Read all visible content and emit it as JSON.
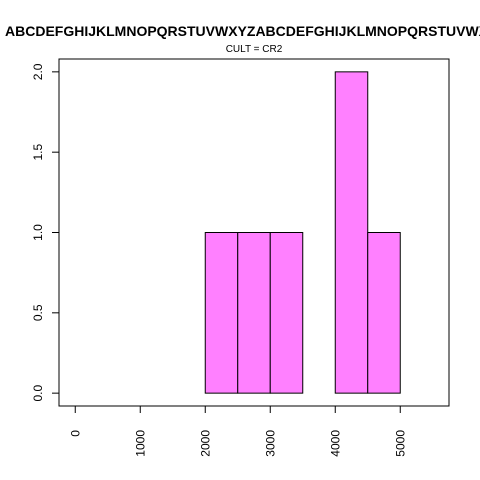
{
  "chart_data": {
    "type": "bar",
    "title": "ABCDEFGHIJKLMNOPQRSTUVWXYZABCDEFGHIJKLMNOPQRSTUVWXYZ",
    "subtitle": "CULT = CR2",
    "xlabel": "",
    "ylabel": "",
    "xlim": [
      -250,
      5750
    ],
    "ylim": [
      -0.08,
      2.08
    ],
    "bin_width": 500,
    "bins": [
      {
        "start": 2000,
        "end": 2500,
        "count": 1
      },
      {
        "start": 2500,
        "end": 3000,
        "count": 1
      },
      {
        "start": 3000,
        "end": 3500,
        "count": 1
      },
      {
        "start": 3500,
        "end": 4000,
        "count": 0
      },
      {
        "start": 4000,
        "end": 4500,
        "count": 2
      },
      {
        "start": 4500,
        "end": 5000,
        "count": 1
      }
    ],
    "x_ticks": [
      0,
      1000,
      2000,
      3000,
      4000,
      5000
    ],
    "x_tick_labels": [
      "0",
      "1000",
      "2000",
      "3000",
      "4000",
      "5000"
    ],
    "y_ticks": [
      0,
      0.5,
      1,
      1.5,
      2
    ],
    "y_tick_labels": [
      "0.0",
      "0.5",
      "1.0",
      "1.5",
      "2.0"
    ],
    "bar_color": "#FF80FF",
    "bar_edge_color": "#000000",
    "grid": false,
    "legend": "none"
  }
}
